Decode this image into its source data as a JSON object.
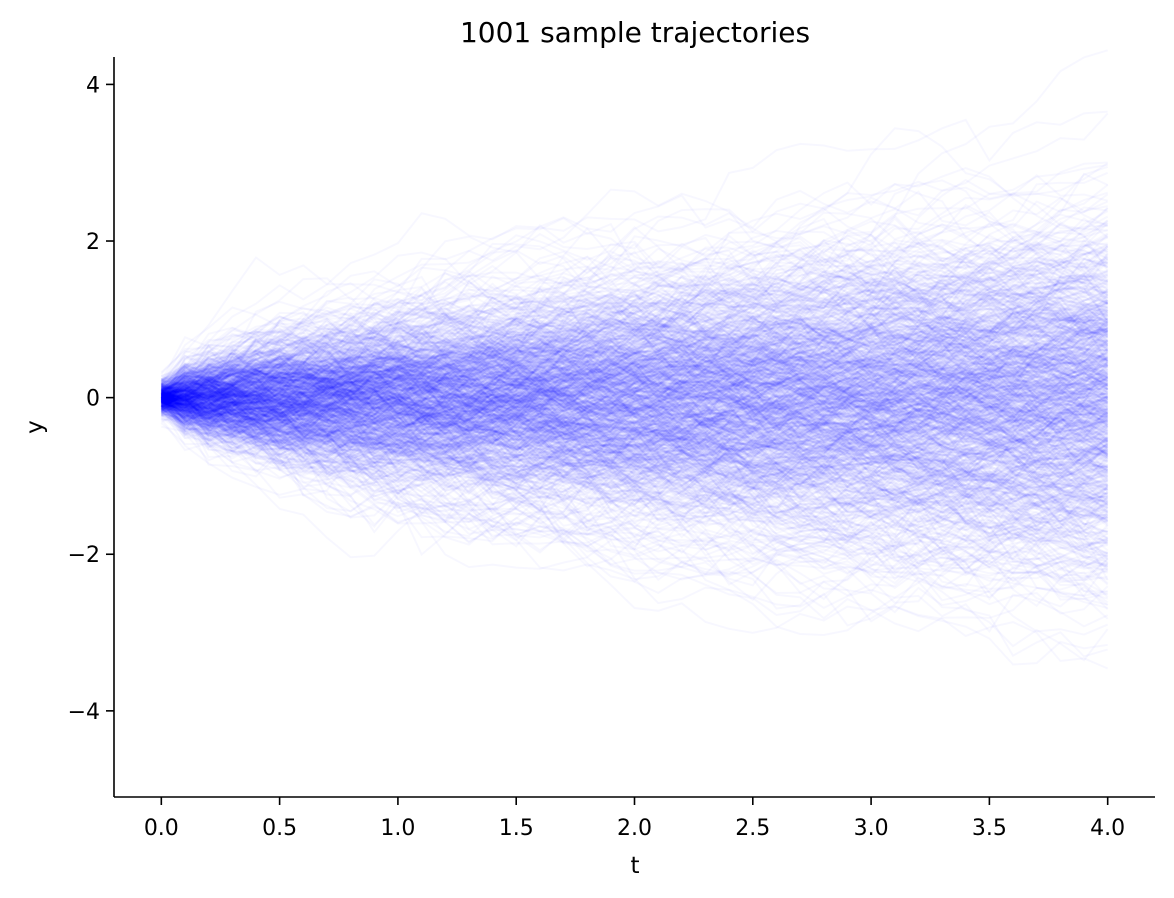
{
  "chart_data": {
    "type": "line",
    "title": "1001 sample trajectories",
    "xlabel": "t",
    "ylabel": "y",
    "xlim": [
      -0.2,
      4.2
    ],
    "ylim": [
      -5.1,
      4.35
    ],
    "xticks": [
      0.0,
      0.5,
      1.0,
      1.5,
      2.0,
      2.5,
      3.0,
      3.5,
      4.0
    ],
    "xtick_labels": [
      "0.0",
      "0.5",
      "1.0",
      "1.5",
      "2.0",
      "2.5",
      "3.0",
      "3.5",
      "4.0"
    ],
    "yticks": [
      -4,
      -2,
      0,
      2,
      4
    ],
    "ytick_labels": [
      "−4",
      "−2",
      "0",
      "2",
      "4"
    ],
    "series_count": 1001,
    "t_start": 0.0,
    "t_end": 4.0,
    "start_spread_std": 0.1,
    "end_spread_std": 1.15,
    "line_color": "#0000ff",
    "line_alpha": 0.03,
    "grid": false,
    "legend": "none"
  }
}
